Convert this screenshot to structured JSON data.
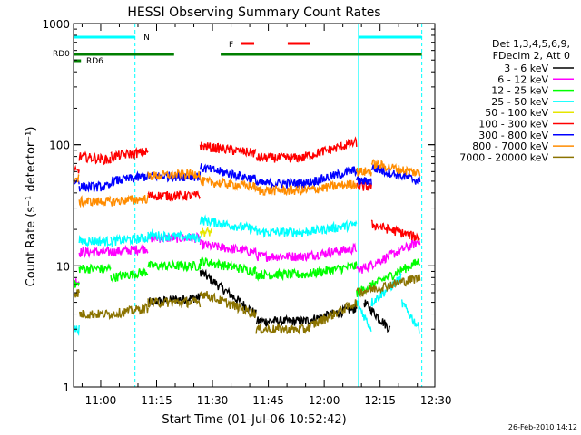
{
  "chart_data": {
    "type": "line",
    "title": "HESSI Observing Summary Count Rates",
    "xlabel": "Start Time (01-Jul-06 10:52:42)",
    "ylabel": "Count Rate (s⁻¹ detector⁻¹)",
    "yscale": "log",
    "ylim": [
      1,
      1000
    ],
    "xlim_minutes": [
      0,
      97
    ],
    "y_ticks": [
      "1",
      "10",
      "100",
      "1000"
    ],
    "x_ticks": [
      {
        "label": "11:00",
        "t": 7.3
      },
      {
        "label": "11:15",
        "t": 22.3
      },
      {
        "label": "11:30",
        "t": 37.3
      },
      {
        "label": "11:45",
        "t": 52.3
      },
      {
        "label": "12:00",
        "t": 67.3
      },
      {
        "label": "12:15",
        "t": 82.3
      },
      {
        "label": "12:30",
        "t": 97.3
      }
    ],
    "legend_header": [
      "Det 1,3,4,5,6,9,",
      "FDecim 2, Att 0"
    ],
    "legend_position": "right",
    "footer_date": "26-Feb-2010 14:12",
    "flags": [
      {
        "label": "N",
        "color": "#00ffff"
      },
      {
        "label": "RD0",
        "color": "#007f00"
      },
      {
        "label": "RD6",
        "color": "#007f00"
      },
      {
        "label": "F",
        "color": "#ff0000"
      }
    ],
    "night_boundaries_minutes": [
      0,
      16.5,
      76.5,
      93.5
    ],
    "series": [
      {
        "name": "3 - 6 keV",
        "color": "#000000",
        "segments": [
          [
            0,
            20,
            null,
            null
          ],
          [
            20,
            34,
            5.0,
            5.5
          ],
          [
            34,
            49,
            9.0,
            4.0
          ],
          [
            49,
            62,
            3.5,
            3.5
          ],
          [
            62,
            76,
            3.5,
            4.5
          ],
          [
            78,
            85,
            5.0,
            3.0
          ]
        ]
      },
      {
        "name": "6 - 12 keV",
        "color": "#ff00ff",
        "segments": [
          [
            0,
            1.5,
            7.5,
            7.5
          ],
          [
            1.5,
            10,
            13,
            13
          ],
          [
            10,
            20,
            13,
            14
          ],
          [
            20,
            34,
            17,
            17
          ],
          [
            34,
            49,
            15,
            13
          ],
          [
            49,
            62,
            12,
            12
          ],
          [
            62,
            76,
            12,
            14
          ],
          [
            76,
            93,
            9,
            16
          ]
        ]
      },
      {
        "name": "12 - 25 keV",
        "color": "#00ff00",
        "segments": [
          [
            0,
            1.5,
            7,
            7
          ],
          [
            1.5,
            10,
            9.5,
            9.5
          ],
          [
            10,
            20,
            8,
            9
          ],
          [
            20,
            34,
            10,
            10
          ],
          [
            34,
            49,
            11,
            9
          ],
          [
            49,
            62,
            8.5,
            8.5
          ],
          [
            62,
            76,
            8.5,
            10
          ],
          [
            76,
            93,
            6,
            11
          ]
        ]
      },
      {
        "name": "25 - 50 keV",
        "color": "#00ffff",
        "segments": [
          [
            0,
            1.5,
            3,
            3
          ],
          [
            1.5,
            10,
            16,
            16
          ],
          [
            10,
            20,
            16,
            17
          ],
          [
            20,
            34,
            18,
            17
          ],
          [
            34,
            49,
            24,
            20
          ],
          [
            49,
            62,
            19,
            19
          ],
          [
            62,
            76,
            19,
            22
          ],
          [
            76,
            80,
            5,
            3
          ],
          [
            80,
            88,
            5,
            8
          ],
          [
            88,
            93,
            5,
            3
          ]
        ]
      },
      {
        "name": "50 - 100 keV",
        "color": "#e6e600",
        "segments": [
          [
            34,
            37,
            19,
            19
          ]
        ]
      },
      {
        "name": "100 - 300 keV",
        "color": "#ff0000",
        "segments": [
          [
            0,
            1.5,
            60,
            60
          ],
          [
            1.5,
            10,
            80,
            75
          ],
          [
            10,
            20,
            80,
            88
          ],
          [
            20,
            34,
            38,
            38
          ],
          [
            34,
            49,
            98,
            85
          ],
          [
            49,
            62,
            78,
            78
          ],
          [
            62,
            76,
            80,
            105
          ],
          [
            76,
            80,
            45,
            45
          ],
          [
            80,
            93,
            22,
            17
          ]
        ]
      },
      {
        "name": "300 - 800 keV",
        "color": "#0000ff",
        "segments": [
          [
            0,
            1.5,
            50,
            50
          ],
          [
            1.5,
            10,
            45,
            45
          ],
          [
            10,
            20,
            50,
            55
          ],
          [
            20,
            34,
            55,
            55
          ],
          [
            34,
            49,
            65,
            52
          ],
          [
            49,
            62,
            48,
            48
          ],
          [
            62,
            76,
            48,
            62
          ],
          [
            76,
            80,
            50,
            50
          ],
          [
            80,
            93,
            65,
            50
          ]
        ]
      },
      {
        "name": "800 - 7000 keV",
        "color": "#ff8c00",
        "segments": [
          [
            0,
            1.5,
            52,
            52
          ],
          [
            1.5,
            10,
            34,
            34
          ],
          [
            10,
            20,
            34,
            36
          ],
          [
            20,
            34,
            55,
            58
          ],
          [
            34,
            49,
            50,
            45
          ],
          [
            49,
            62,
            42,
            42
          ],
          [
            62,
            76,
            42,
            48
          ],
          [
            76,
            80,
            60,
            60
          ],
          [
            80,
            93,
            70,
            58
          ]
        ]
      },
      {
        "name": "7000 - 20000 keV",
        "color": "#8b7300",
        "segments": [
          [
            0,
            1.5,
            6,
            6
          ],
          [
            1.5,
            10,
            4,
            4
          ],
          [
            10,
            20,
            4,
            4.5
          ],
          [
            20,
            34,
            5,
            5
          ],
          [
            34,
            49,
            6,
            4
          ],
          [
            49,
            62,
            3,
            3
          ],
          [
            62,
            76,
            3,
            5
          ],
          [
            76,
            93,
            6,
            8
          ]
        ]
      }
    ]
  }
}
